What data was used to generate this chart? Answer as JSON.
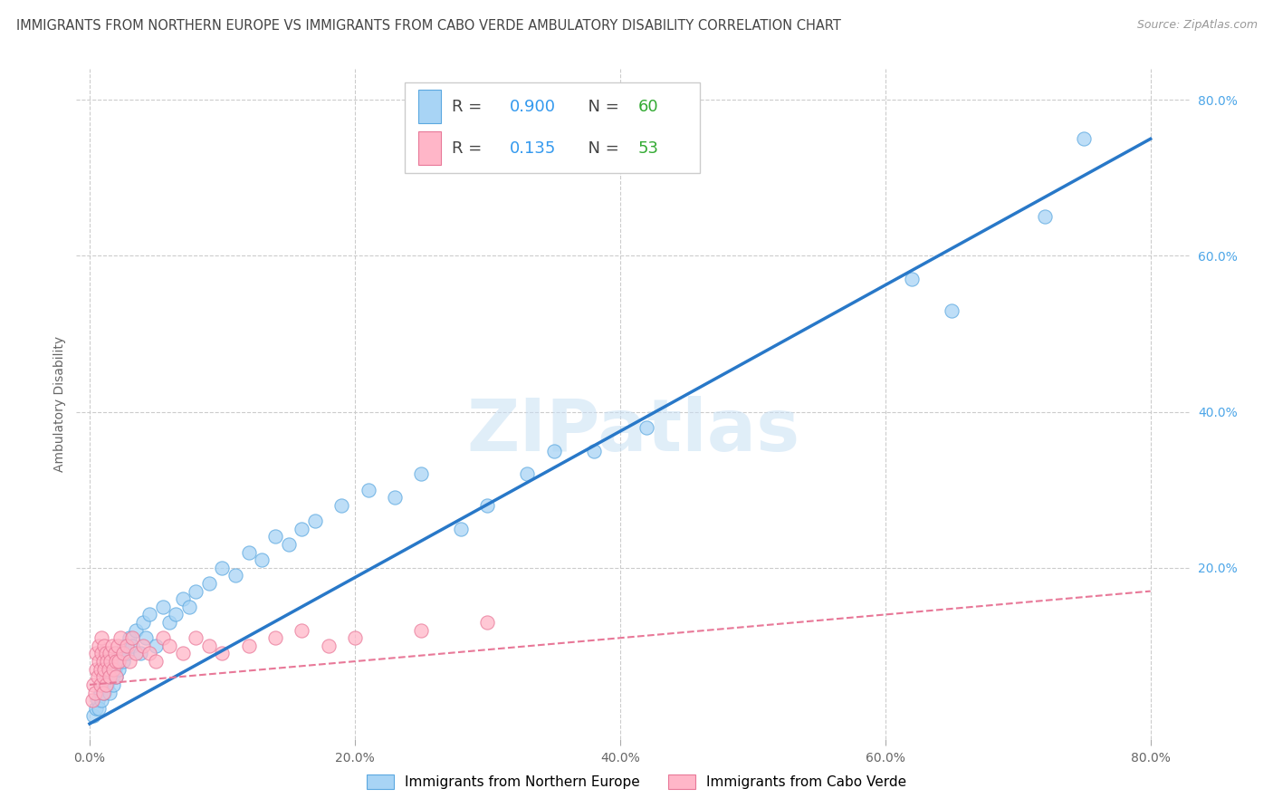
{
  "title": "IMMIGRANTS FROM NORTHERN EUROPE VS IMMIGRANTS FROM CABO VERDE AMBULATORY DISABILITY CORRELATION CHART",
  "source": "Source: ZipAtlas.com",
  "ylabel": "Ambulatory Disability",
  "x_tick_labels": [
    "0.0%",
    "20.0%",
    "40.0%",
    "60.0%",
    "80.0%"
  ],
  "x_tick_positions": [
    0,
    20,
    40,
    60,
    80
  ],
  "y_tick_labels": [
    "20.0%",
    "40.0%",
    "60.0%",
    "80.0%"
  ],
  "y_tick_positions": [
    20,
    40,
    60,
    80
  ],
  "xlim": [
    -1,
    83
  ],
  "ylim": [
    -2,
    84
  ],
  "blue_scatter_x": [
    0.3,
    0.5,
    0.6,
    0.7,
    0.8,
    0.9,
    1.0,
    1.1,
    1.2,
    1.3,
    1.4,
    1.5,
    1.6,
    1.7,
    1.8,
    1.9,
    2.0,
    2.1,
    2.2,
    2.3,
    2.5,
    2.6,
    2.8,
    3.0,
    3.2,
    3.5,
    3.8,
    4.0,
    4.2,
    4.5,
    5.0,
    5.5,
    6.0,
    6.5,
    7.0,
    7.5,
    8.0,
    9.0,
    10.0,
    11.0,
    12.0,
    13.0,
    14.0,
    15.0,
    16.0,
    17.0,
    19.0,
    21.0,
    23.0,
    25.0,
    28.0,
    30.0,
    33.0,
    35.0,
    38.0,
    42.0,
    62.0,
    65.0,
    72.0,
    75.0
  ],
  "blue_scatter_y": [
    1,
    2,
    3,
    2,
    4,
    3,
    5,
    4,
    6,
    5,
    7,
    4,
    8,
    6,
    5,
    7,
    6,
    8,
    7,
    9,
    8,
    10,
    9,
    11,
    10,
    12,
    9,
    13,
    11,
    14,
    10,
    15,
    13,
    14,
    16,
    15,
    17,
    18,
    20,
    19,
    22,
    21,
    24,
    23,
    25,
    26,
    28,
    30,
    29,
    32,
    25,
    28,
    32,
    35,
    35,
    38,
    57,
    53,
    65,
    75
  ],
  "pink_scatter_x": [
    0.2,
    0.3,
    0.4,
    0.5,
    0.5,
    0.6,
    0.7,
    0.7,
    0.8,
    0.8,
    0.9,
    0.9,
    1.0,
    1.0,
    1.0,
    1.1,
    1.1,
    1.2,
    1.2,
    1.3,
    1.4,
    1.5,
    1.5,
    1.6,
    1.7,
    1.8,
    1.9,
    2.0,
    2.0,
    2.1,
    2.2,
    2.3,
    2.5,
    2.8,
    3.0,
    3.2,
    3.5,
    4.0,
    4.5,
    5.0,
    5.5,
    6.0,
    7.0,
    8.0,
    9.0,
    10.0,
    12.0,
    14.0,
    16.0,
    18.0,
    20.0,
    25.0,
    30.0
  ],
  "pink_scatter_y": [
    3,
    5,
    4,
    7,
    9,
    6,
    8,
    10,
    5,
    7,
    9,
    11,
    4,
    6,
    8,
    7,
    10,
    5,
    9,
    8,
    7,
    6,
    9,
    8,
    10,
    7,
    9,
    6,
    8,
    10,
    8,
    11,
    9,
    10,
    8,
    11,
    9,
    10,
    9,
    8,
    11,
    10,
    9,
    11,
    10,
    9,
    10,
    11,
    12,
    10,
    11,
    12,
    13
  ],
  "blue_line_x": [
    0,
    80
  ],
  "blue_line_y": [
    0,
    75
  ],
  "pink_line_x": [
    0,
    80
  ],
  "pink_line_y": [
    5,
    17
  ],
  "legend_blue_R": "0.900",
  "legend_blue_N": "60",
  "legend_pink_R": "0.135",
  "legend_pink_N": "53",
  "blue_color": "#A8D4F5",
  "blue_edge_color": "#5BA8E0",
  "blue_line_color": "#2878C8",
  "pink_color": "#FFB6C8",
  "pink_edge_color": "#E87898",
  "pink_line_color": "#E87898",
  "watermark": "ZIPatlas",
  "legend1_label": "Immigrants from Northern Europe",
  "legend2_label": "Immigrants from Cabo Verde",
  "title_fontsize": 10.5,
  "tick_fontsize": 10,
  "right_tick_color": "#4DA6E8",
  "legend_R_color": "#4488CC",
  "legend_N_color": "#44AA44"
}
